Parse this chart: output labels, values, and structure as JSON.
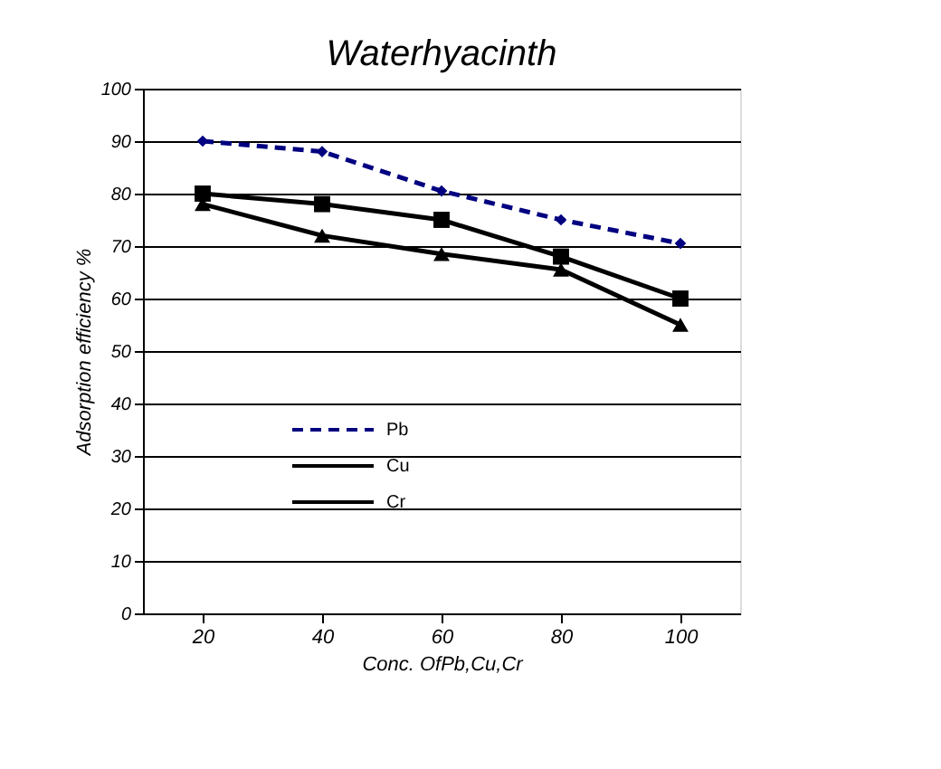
{
  "chart_data": {
    "type": "line",
    "title": "Waterhyacinth",
    "xlabel": "Conc. OfPb,Cu,Cr",
    "ylabel": "Adsorption efficiency %",
    "categories": [
      "20",
      "40",
      "60",
      "80",
      "100"
    ],
    "series": [
      {
        "name": "Pb",
        "color": "#000080",
        "marker": "diamond",
        "line_style": "dashed",
        "values": [
          90,
          88,
          80.5,
          75,
          70.5
        ]
      },
      {
        "name": "Cu",
        "color": "#000000",
        "marker": "square",
        "line_style": "solid",
        "values": [
          80,
          78,
          75,
          68,
          60
        ]
      },
      {
        "name": "Cr",
        "color": "#000000",
        "marker": "triangle",
        "line_style": "solid",
        "values": [
          78,
          72,
          68.5,
          65.5,
          55
        ]
      }
    ],
    "ylim": [
      0,
      100
    ],
    "yticks": [
      0,
      10,
      20,
      30,
      40,
      50,
      60,
      70,
      80,
      90,
      100
    ],
    "grid": "y",
    "legend": "bottom"
  }
}
